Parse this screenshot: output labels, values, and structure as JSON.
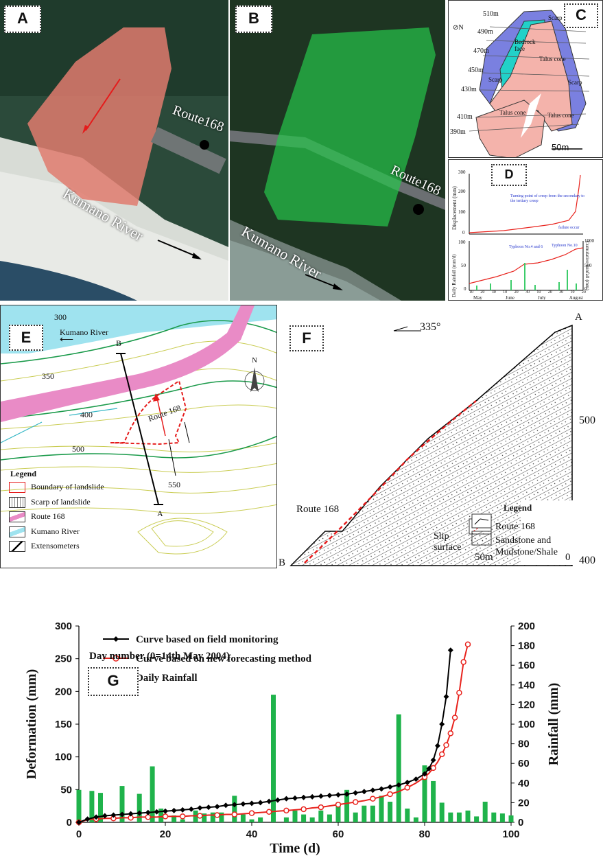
{
  "panels": {
    "a": {
      "tag": "A",
      "route": "Route168",
      "river": "Kumano River"
    },
    "b": {
      "tag": "B",
      "route": "Route168",
      "river": "Kumano River"
    },
    "c": {
      "tag": "C",
      "scale": "50m",
      "elevations": [
        "510m",
        "490m",
        "470m",
        "450m",
        "430m",
        "410m",
        "390m"
      ],
      "labels": [
        "Scarp",
        "Bedrock face",
        "Talus cone",
        "Scarp",
        "Scarp",
        "Talus cone",
        "Talus cone"
      ]
    },
    "d": {
      "tag": "D",
      "y_top": "Displacement (mm)",
      "y_bot": "Daily Rainfall (mm/d)",
      "y_right": "Cumulative rainfall (mm)",
      "ann1": "Turning point of creep from the secondary to the tertiary creep",
      "ann2": "failure occur",
      "ann3": "Typhoon No.4 and 6",
      "ann4": "Typhoon No.10",
      "months": [
        "May",
        "June",
        "July",
        "August"
      ],
      "top_ticks": [
        "300",
        "200",
        "100",
        "0"
      ],
      "bot_ticks": [
        "100",
        "50",
        "0"
      ],
      "right_ticks": [
        "1000",
        "500",
        "0"
      ],
      "days": [
        "10",
        "20",
        "30",
        "10",
        "20",
        "30",
        "10",
        "20",
        "30",
        "10",
        "20"
      ]
    },
    "e": {
      "tag": "E",
      "river": "Kumano River",
      "route": "Route 168",
      "contours": [
        "300",
        "350",
        "400",
        "500",
        "550"
      ],
      "north": "N",
      "end_a": "A",
      "end_b": "B",
      "legend_title": "Legend",
      "legend_items": [
        "Boundary of landslide",
        "Scarp of landslide",
        "Route 168",
        "Kumano River",
        "Extensometers"
      ]
    },
    "f": {
      "tag": "F",
      "bearing": "335°",
      "end_a": "A",
      "end_b": "B",
      "route": "Route 168",
      "legend_title": "Legend",
      "slip": "Slip surface",
      "legend_route": "Route 168",
      "rock1": "Sandstone and",
      "rock2": "Mudstone/Shale",
      "elev": [
        "500",
        "400"
      ],
      "scale": [
        "50m",
        "0"
      ]
    },
    "g": {
      "tag": "G",
      "note": "Day number (0=14th May 2004)"
    }
  },
  "chart_data": {
    "type": "line",
    "xlabel": "Time (d)",
    "ylabel": "Deformation (mm)",
    "y2label": "Rainfall (mm)",
    "xlim": [
      0,
      100
    ],
    "ylim": [
      0,
      300
    ],
    "y2lim": [
      0,
      200
    ],
    "xticks": [
      0,
      20,
      40,
      60,
      80,
      100
    ],
    "yticks": [
      0,
      50,
      100,
      150,
      200,
      250,
      300
    ],
    "y2ticks": [
      0,
      20,
      40,
      60,
      80,
      100,
      120,
      140,
      160,
      180,
      200
    ],
    "grid": false,
    "legend_position": "top-left",
    "colors": {
      "field": "#000000",
      "forecast": "#e8221c",
      "rain": "#1fb34b"
    },
    "series": [
      {
        "name": "Curve based on field monitoring",
        "type": "line",
        "x": [
          0,
          2,
          4,
          6,
          8,
          10,
          12,
          14,
          16,
          18,
          20,
          22,
          24,
          26,
          28,
          30,
          32,
          34,
          36,
          38,
          40,
          42,
          44,
          46,
          48,
          50,
          52,
          54,
          56,
          58,
          60,
          62,
          64,
          66,
          68,
          70,
          72,
          74,
          76,
          78,
          80,
          81,
          82,
          83,
          84,
          85,
          86
        ],
        "y": [
          0,
          5,
          8,
          10,
          11,
          12,
          13,
          14,
          15,
          16,
          17,
          18,
          19,
          20,
          22,
          23,
          24,
          26,
          27,
          28,
          29,
          30,
          32,
          34,
          36,
          37,
          38,
          39,
          40,
          41,
          42,
          43,
          45,
          47,
          49,
          51,
          54,
          57,
          61,
          66,
          74,
          82,
          95,
          117,
          150,
          192,
          263
        ]
      },
      {
        "name": "Curve based on new forecasting method",
        "type": "line",
        "x": [
          0,
          2,
          4,
          6,
          8,
          10,
          12,
          14,
          16,
          18,
          20,
          22,
          24,
          26,
          28,
          30,
          32,
          34,
          36,
          38,
          40,
          42,
          44,
          46,
          48,
          50,
          52,
          54,
          56,
          58,
          60,
          62,
          64,
          66,
          68,
          70,
          72,
          74,
          76,
          78,
          80,
          81,
          82,
          83,
          84,
          85,
          86,
          87,
          88,
          89,
          90
        ],
        "y": [
          0,
          4,
          5,
          6,
          6,
          7,
          7,
          8,
          8,
          8,
          9,
          9,
          9,
          10,
          10,
          11,
          11,
          12,
          12,
          13,
          14,
          15,
          16,
          17,
          18,
          19,
          20,
          22,
          23,
          25,
          27,
          29,
          31,
          33,
          36,
          39,
          43,
          47,
          53,
          60,
          69,
          75,
          83,
          92,
          104,
          118,
          136,
          160,
          198,
          245,
          272
        ]
      },
      {
        "name": "Daily Rainfall",
        "type": "bar",
        "axis": "right",
        "x": [
          0,
          3,
          5,
          10,
          14,
          17,
          19,
          22,
          24,
          27,
          29,
          31,
          33,
          36,
          38,
          40,
          42,
          45,
          48,
          50,
          52,
          54,
          56,
          58,
          60,
          62,
          64,
          66,
          68,
          70,
          72,
          74,
          76,
          78,
          80,
          82,
          84,
          86,
          88,
          90,
          92,
          94,
          96,
          98,
          100
        ],
        "y": [
          33,
          32,
          30,
          37,
          29,
          57,
          14,
          7,
          3,
          12,
          9,
          10,
          10,
          27,
          8,
          3,
          5,
          130,
          5,
          12,
          8,
          5,
          12,
          8,
          20,
          33,
          10,
          17,
          17,
          27,
          21,
          110,
          14,
          5,
          58,
          42,
          20,
          10,
          10,
          12,
          6,
          21,
          10,
          9,
          7
        ]
      }
    ]
  }
}
